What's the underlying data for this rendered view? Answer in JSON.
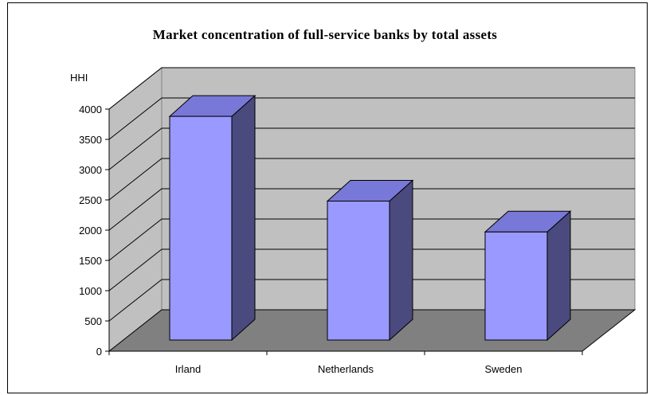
{
  "chart_data": {
    "type": "bar",
    "title": "Market concentration of full-service banks by total assets",
    "ylabel": "HHI",
    "xlabel": "",
    "categories": [
      "Irland",
      "Netherlands",
      "Sweden"
    ],
    "values": [
      3880,
      2480,
      1970
    ],
    "ylim": [
      0,
      4000
    ],
    "yticks": [
      0,
      500,
      1000,
      1500,
      2000,
      2500,
      3000,
      3500,
      4000
    ],
    "grid": true,
    "legend": "none",
    "style": "3d",
    "colors": {
      "bar_front": "#9999ff",
      "bar_top": "#7878d8",
      "bar_side": "#4a4a7e",
      "back_wall": "#c0c0c0",
      "side_wall": "#c0c0c0",
      "floor": "#808080"
    }
  }
}
